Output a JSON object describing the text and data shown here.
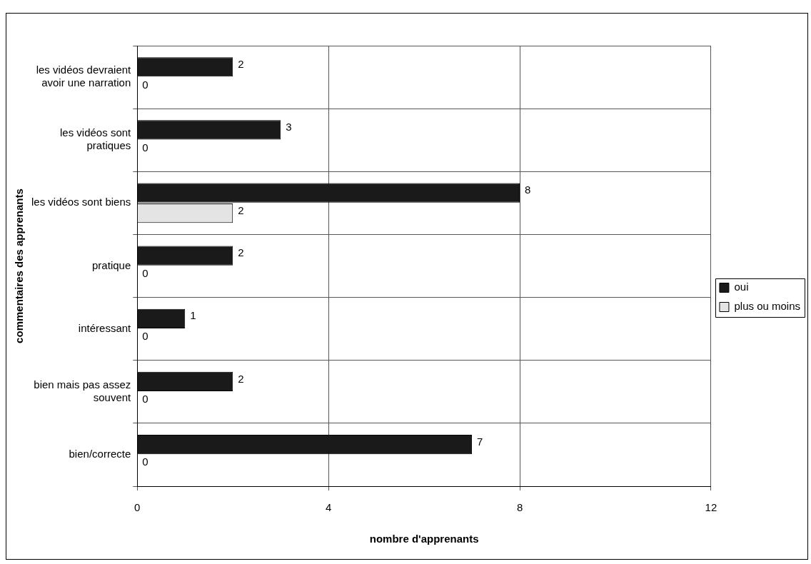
{
  "chart_data": {
    "type": "bar",
    "orientation": "horizontal",
    "xlabel": "nombre d'apprenants",
    "ylabel": "commentaires des apprenants",
    "categories": [
      "les vidéos devraient avoir une narration",
      "les vidéos sont pratiques",
      "les vidéos sont biens",
      "pratique",
      "intéressant",
      "bien mais pas assez souvent",
      "bien/correcte"
    ],
    "series": [
      {
        "name": "oui",
        "color": "#1a1a1a",
        "values": [
          2,
          3,
          8,
          2,
          1,
          2,
          7
        ]
      },
      {
        "name": "plus ou moins",
        "color": "#e4e4e4",
        "values": [
          0,
          0,
          2,
          0,
          0,
          0,
          0
        ]
      }
    ],
    "xlim": [
      0,
      12
    ],
    "xticks": [
      0,
      4,
      8,
      12
    ],
    "grid": true,
    "legend": "right",
    "data_labels": true
  }
}
